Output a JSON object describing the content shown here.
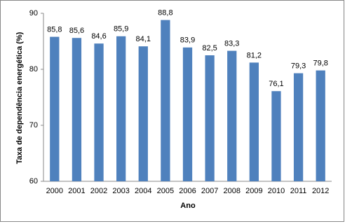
{
  "chart_data": {
    "type": "bar",
    "x_label": "Ano",
    "y_label": "Taxa de dependência energética (%)",
    "categories": [
      "2000",
      "2001",
      "2002",
      "2003",
      "2004",
      "2005",
      "2006",
      "2007",
      "2008",
      "2009",
      "2010",
      "2011",
      "2012"
    ],
    "values": [
      85.8,
      85.6,
      84.6,
      85.9,
      84.1,
      88.8,
      83.9,
      82.5,
      83.3,
      81.2,
      76.1,
      79.3,
      79.8
    ],
    "value_labels": [
      "85,8",
      "85,6",
      "84,6",
      "85,9",
      "84,1",
      "88,8",
      "83,9",
      "82,5",
      "83,3",
      "81,2",
      "76,1",
      "79,3",
      "79,8"
    ],
    "color": "#4f81bd",
    "ylim": [
      60,
      90
    ],
    "yticks": [
      60,
      70,
      80,
      90
    ],
    "grid": false
  }
}
